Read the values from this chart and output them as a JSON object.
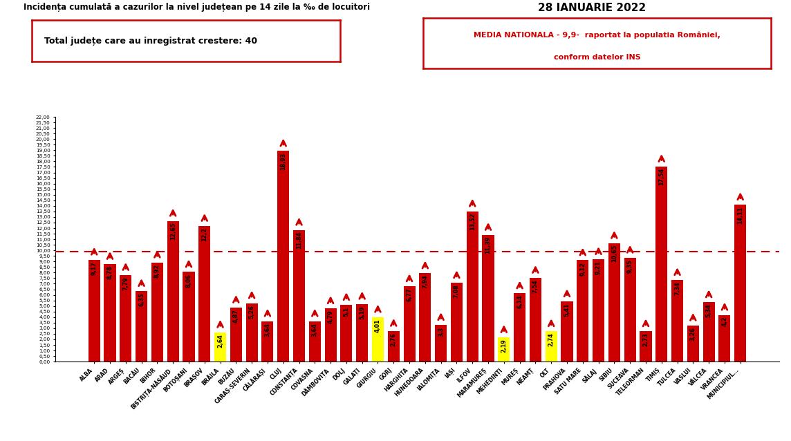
{
  "title": "Incidența cumulată a cazurilor la nivel județean pe 14 zile la ‰ de locuitori",
  "date": "28 IANUARIE 2022",
  "box1_text": "Total județe care au inregistrat crestere: 40",
  "box2_line1": "MEDIA NATIONALA - 9,9-  raportat la populatia României,",
  "box2_line2": "conform datelor INS",
  "reference_line": 9.9,
  "categories": [
    "ALBA",
    "ARAD",
    "ARGEȘ",
    "BACĂU",
    "BIHOR",
    "BISTRIȚA-NĂSĂUD",
    "BOTOȘANI",
    "BRAȘOV",
    "BRĂILA",
    "BUZĂU",
    "CARAȘ-SEVERIN",
    "CĂLĂRAȘI",
    "CLUJ",
    "CONSTANȚA",
    "COVASNA",
    "DÂMBOVIȚA",
    "DOLJ",
    "GALAȚI",
    "GIURGIU",
    "GORJ",
    "HARGHITA",
    "HUNEDOARA",
    "IALOMIȚA",
    "IAȘI",
    "ILFOV",
    "MARAMUREȘ",
    "MEHEDINȚI",
    "MUREȘ",
    "NEAMȚ",
    "OLT",
    "PRAHOVA",
    "SATU MARE",
    "SĂLAJ",
    "SIBIU",
    "SUCEAVA",
    "TELEORMAN",
    "TIMIȘ",
    "TULCEA",
    "VASLUI",
    "VÂLCEA",
    "VRANCEA",
    "MUNICIPIUL..."
  ],
  "values": [
    9.17,
    8.78,
    7.79,
    6.35,
    8.92,
    12.65,
    8.06,
    12.2,
    2.64,
    4.87,
    5.26,
    3.64,
    18.93,
    11.84,
    3.64,
    4.79,
    5.1,
    5.19,
    4.01,
    2.76,
    6.77,
    7.94,
    3.3,
    7.08,
    13.52,
    11.39,
    2.19,
    6.14,
    7.54,
    2.74,
    5.41,
    9.12,
    9.21,
    10.65,
    9.35,
    2.73,
    17.54,
    7.34,
    3.26,
    5.34,
    4.2,
    14.11
  ],
  "bar_colors": [
    "#cc0000",
    "#cc0000",
    "#cc0000",
    "#cc0000",
    "#cc0000",
    "#cc0000",
    "#cc0000",
    "#cc0000",
    "#ffff00",
    "#cc0000",
    "#cc0000",
    "#cc0000",
    "#cc0000",
    "#cc0000",
    "#cc0000",
    "#cc0000",
    "#cc0000",
    "#cc0000",
    "#ffff00",
    "#cc0000",
    "#cc0000",
    "#cc0000",
    "#cc0000",
    "#cc0000",
    "#cc0000",
    "#cc0000",
    "#ffff00",
    "#cc0000",
    "#cc0000",
    "#ffff00",
    "#cc0000",
    "#cc0000",
    "#cc0000",
    "#cc0000",
    "#cc0000",
    "#cc0000",
    "#cc0000",
    "#cc0000",
    "#cc0000",
    "#cc0000",
    "#cc0000",
    "#cc0000"
  ],
  "ylim_max": 22.0,
  "ytick_step": 0.5,
  "background_color": "#ffffff",
  "red_color": "#cc0000"
}
